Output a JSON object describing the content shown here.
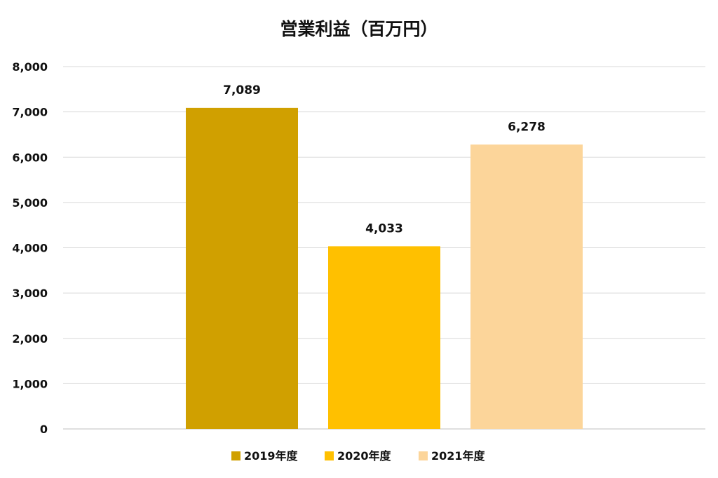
{
  "chart_data": {
    "type": "bar",
    "title": "営業利益（百万円）",
    "categories": [
      "2019年度",
      "2020年度",
      "2021年度"
    ],
    "values": [
      7089,
      4033,
      6278
    ],
    "value_labels": [
      "7,089",
      "4,033",
      "6,278"
    ],
    "colors": [
      "#D0A000",
      "#FFC000",
      "#FCD59A"
    ],
    "ylim": [
      0,
      8000
    ],
    "y_ticks": [
      0,
      1000,
      2000,
      3000,
      4000,
      5000,
      6000,
      7000,
      8000
    ],
    "y_tick_labels": [
      "0",
      "1,000",
      "2,000",
      "3,000",
      "4,000",
      "5,000",
      "6,000",
      "7,000",
      "8,000"
    ],
    "xlabel": "",
    "ylabel": "",
    "grid": true,
    "legend_position": "bottom"
  }
}
